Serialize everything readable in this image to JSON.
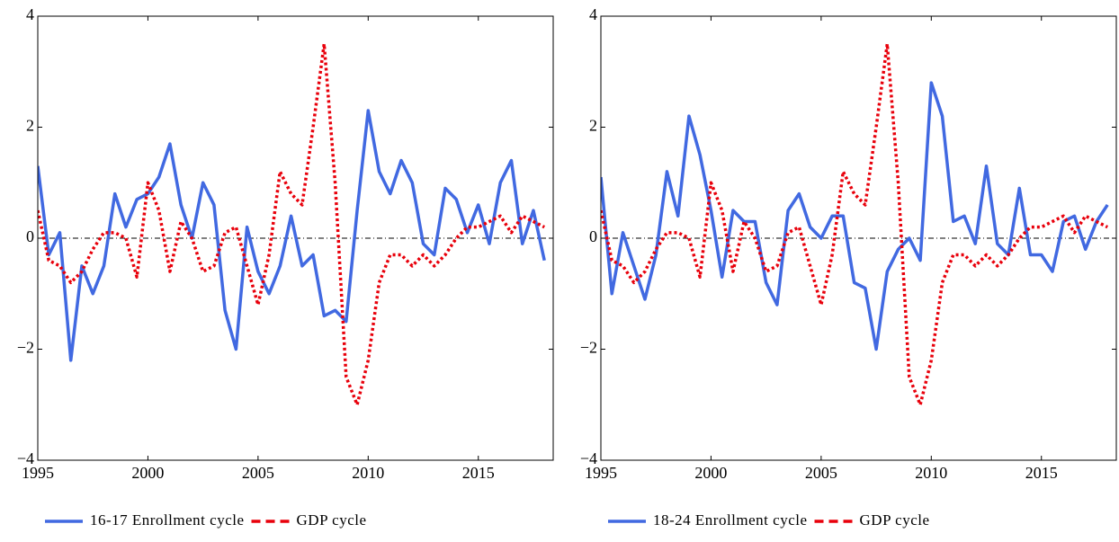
{
  "chart_data": [
    {
      "type": "line",
      "x": [
        1995,
        1995.5,
        1996,
        1996.5,
        1997,
        1997.5,
        1998,
        1998.5,
        1999,
        1999.5,
        2000,
        2000.5,
        2001,
        2001.5,
        2002,
        2002.5,
        2003,
        2003.5,
        2004,
        2004.5,
        2005,
        2005.5,
        2006,
        2006.5,
        2007,
        2007.5,
        2008,
        2008.5,
        2009,
        2009.5,
        2010,
        2010.5,
        2011,
        2011.5,
        2012,
        2012.5,
        2013,
        2013.5,
        2014,
        2014.5,
        2015,
        2015.5,
        2016,
        2016.5,
        2017,
        2017.5,
        2018
      ],
      "series": [
        {
          "name": "16-17 Enrollment cycle",
          "color": "#4169e1",
          "style": "solid",
          "values": [
            1.3,
            -0.3,
            0.1,
            -2.2,
            -0.5,
            -1.0,
            -0.5,
            0.8,
            0.2,
            0.7,
            0.8,
            1.1,
            1.7,
            0.6,
            0.0,
            1.0,
            0.6,
            -1.3,
            -2.0,
            0.2,
            -0.6,
            -1.0,
            -0.5,
            0.4,
            -0.5,
            -0.3,
            -1.4,
            -1.3,
            -1.5,
            0.5,
            2.3,
            1.2,
            0.8,
            1.4,
            1.0,
            -0.1,
            -0.3,
            0.9,
            0.7,
            0.1,
            0.6,
            -0.1,
            1.0,
            1.4,
            -0.1,
            0.5,
            -0.4
          ]
        },
        {
          "name": "GDP cycle",
          "color": "#e8000b",
          "style": "dotted",
          "values": [
            0.5,
            -0.4,
            -0.5,
            -0.8,
            -0.6,
            -0.2,
            0.1,
            0.1,
            0.0,
            -0.7,
            1.0,
            0.5,
            -0.6,
            0.3,
            0.0,
            -0.6,
            -0.5,
            0.1,
            0.2,
            -0.5,
            -1.2,
            -0.3,
            1.2,
            0.8,
            0.6,
            2.0,
            3.5,
            1.0,
            -2.5,
            -3.0,
            -2.2,
            -0.8,
            -0.3,
            -0.3,
            -0.5,
            -0.3,
            -0.5,
            -0.3,
            0.0,
            0.2,
            0.2,
            0.3,
            0.4,
            0.1,
            0.4,
            0.3,
            0.2
          ]
        }
      ],
      "xlim": [
        1995,
        2018.4
      ],
      "ylim": [
        -4,
        4
      ],
      "xticks": [
        1995,
        2000,
        2005,
        2010,
        2015
      ],
      "yticks": [
        {
          "value": -4,
          "label": "−4"
        },
        {
          "value": -2,
          "label": "−2"
        },
        0,
        2,
        4
      ],
      "reference_line": 0
    },
    {
      "type": "line",
      "x": [
        1995,
        1995.5,
        1996,
        1996.5,
        1997,
        1997.5,
        1998,
        1998.5,
        1999,
        1999.5,
        2000,
        2000.5,
        2001,
        2001.5,
        2002,
        2002.5,
        2003,
        2003.5,
        2004,
        2004.5,
        2005,
        2005.5,
        2006,
        2006.5,
        2007,
        2007.5,
        2008,
        2008.5,
        2009,
        2009.5,
        2010,
        2010.5,
        2011,
        2011.5,
        2012,
        2012.5,
        2013,
        2013.5,
        2014,
        2014.5,
        2015,
        2015.5,
        2016,
        2016.5,
        2017,
        2017.5,
        2018
      ],
      "series": [
        {
          "name": "18-24 Enrollment cycle",
          "color": "#4169e1",
          "style": "solid",
          "values": [
            1.1,
            -1.0,
            0.1,
            -0.5,
            -1.1,
            -0.3,
            1.2,
            0.4,
            2.2,
            1.5,
            0.5,
            -0.7,
            0.5,
            0.3,
            0.3,
            -0.8,
            -1.2,
            0.5,
            0.8,
            0.2,
            0.0,
            0.4,
            0.4,
            -0.8,
            -0.9,
            -2.0,
            -0.6,
            -0.2,
            0.0,
            -0.4,
            2.8,
            2.2,
            0.3,
            0.4,
            -0.1,
            1.3,
            -0.1,
            -0.3,
            0.9,
            -0.3,
            -0.3,
            -0.6,
            0.3,
            0.4,
            -0.2,
            0.3,
            0.6
          ]
        },
        {
          "name": "GDP cycle",
          "color": "#e8000b",
          "style": "dotted",
          "values": [
            0.5,
            -0.4,
            -0.5,
            -0.8,
            -0.6,
            -0.2,
            0.1,
            0.1,
            0.0,
            -0.7,
            1.0,
            0.5,
            -0.6,
            0.3,
            0.0,
            -0.6,
            -0.5,
            0.1,
            0.2,
            -0.5,
            -1.2,
            -0.3,
            1.2,
            0.8,
            0.6,
            2.0,
            3.5,
            1.0,
            -2.5,
            -3.0,
            -2.2,
            -0.8,
            -0.3,
            -0.3,
            -0.5,
            -0.3,
            -0.5,
            -0.3,
            0.0,
            0.2,
            0.2,
            0.3,
            0.4,
            0.1,
            0.4,
            0.3,
            0.2
          ]
        }
      ],
      "xlim": [
        1995,
        2018.4
      ],
      "ylim": [
        -4,
        4
      ],
      "xticks": [
        1995,
        2000,
        2005,
        2010,
        2015
      ],
      "yticks": [
        {
          "value": -4,
          "label": "−4"
        },
        {
          "value": -2,
          "label": "−2"
        },
        0,
        2,
        4
      ],
      "reference_line": 0
    }
  ]
}
